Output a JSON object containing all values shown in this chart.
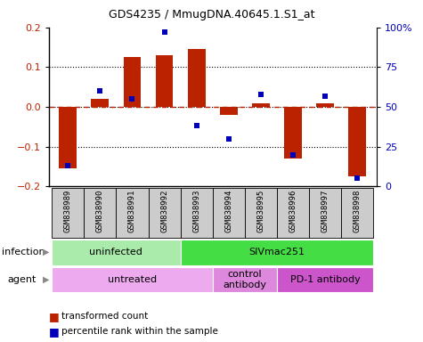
{
  "title": "GDS4235 / MmugDNA.40645.1.S1_at",
  "samples": [
    "GSM838989",
    "GSM838990",
    "GSM838991",
    "GSM838992",
    "GSM838993",
    "GSM838994",
    "GSM838995",
    "GSM838996",
    "GSM838997",
    "GSM838998"
  ],
  "transformed_count": [
    -0.155,
    0.02,
    0.125,
    0.13,
    0.145,
    -0.02,
    0.01,
    -0.13,
    0.01,
    -0.175
  ],
  "percentile_rank": [
    0.13,
    0.6,
    0.55,
    0.97,
    0.38,
    0.3,
    0.58,
    0.2,
    0.57,
    0.05
  ],
  "ylim": [
    -0.2,
    0.2
  ],
  "yticks_left": [
    -0.2,
    -0.1,
    0.0,
    0.1,
    0.2
  ],
  "yticks_right": [
    0,
    25,
    50,
    75,
    100
  ],
  "dotted_lines": [
    -0.1,
    0.0,
    0.1
  ],
  "bar_color": "#bb2200",
  "dot_color": "#0000bb",
  "infection_groups": [
    {
      "label": "uninfected",
      "start": 0,
      "end": 4,
      "color": "#aaeaaa"
    },
    {
      "label": "SIVmac251",
      "start": 4,
      "end": 10,
      "color": "#44dd44"
    }
  ],
  "agent_groups": [
    {
      "label": "untreated",
      "start": 0,
      "end": 5,
      "color": "#eeaaee"
    },
    {
      "label": "control\nantibody",
      "start": 5,
      "end": 7,
      "color": "#dd88dd"
    },
    {
      "label": "PD-1 antibody",
      "start": 7,
      "end": 10,
      "color": "#cc55cc"
    }
  ],
  "legend_bar_color": "#bb2200",
  "legend_dot_color": "#0000bb",
  "bg_color": "#ffffff",
  "bar_width": 0.55,
  "sample_bg": "#cccccc"
}
